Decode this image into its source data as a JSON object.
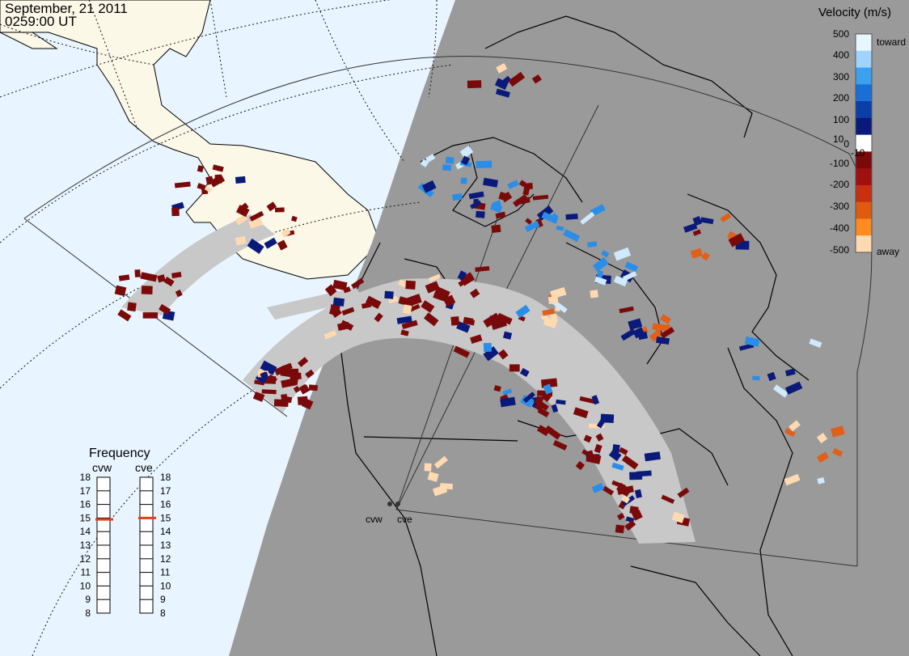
{
  "header": {
    "date": "September, 21 2011",
    "time": "0259:00 UT"
  },
  "legend": {
    "title": "Velocity (m/s)",
    "ticks": [
      "500",
      "400",
      "300",
      "200",
      "100",
      "10",
      "0",
      "-10",
      "-100",
      "-200",
      "-300",
      "-400",
      "-500"
    ],
    "toward_label": "toward",
    "away_label": "away",
    "colors": {
      "toward_strong": "#cfe9ff",
      "toward": "#2a8ee8",
      "toward_weak": "#0a1a7a",
      "away_weak": "#7a0a0a",
      "away": "#e0601a",
      "away_strong": "#ffd9b0",
      "ground_scatter": "#c8c8c8"
    }
  },
  "frequency": {
    "title": "Frequency",
    "radars": [
      {
        "name": "cvw",
        "value_mhz": 14.9
      },
      {
        "name": "cve",
        "value_mhz": 15.0
      }
    ],
    "scale": [
      "18",
      "17",
      "16",
      "15",
      "14",
      "13",
      "12",
      "11",
      "10",
      "9",
      "8"
    ],
    "marker_color": "#e0401a"
  },
  "map": {
    "sites": [
      {
        "name": "cvw"
      },
      {
        "name": "cve"
      }
    ],
    "night_color": "#9a9a9a",
    "ocean_day_color": "#e8f4ff",
    "land_day_color": "#fbf8e8"
  }
}
